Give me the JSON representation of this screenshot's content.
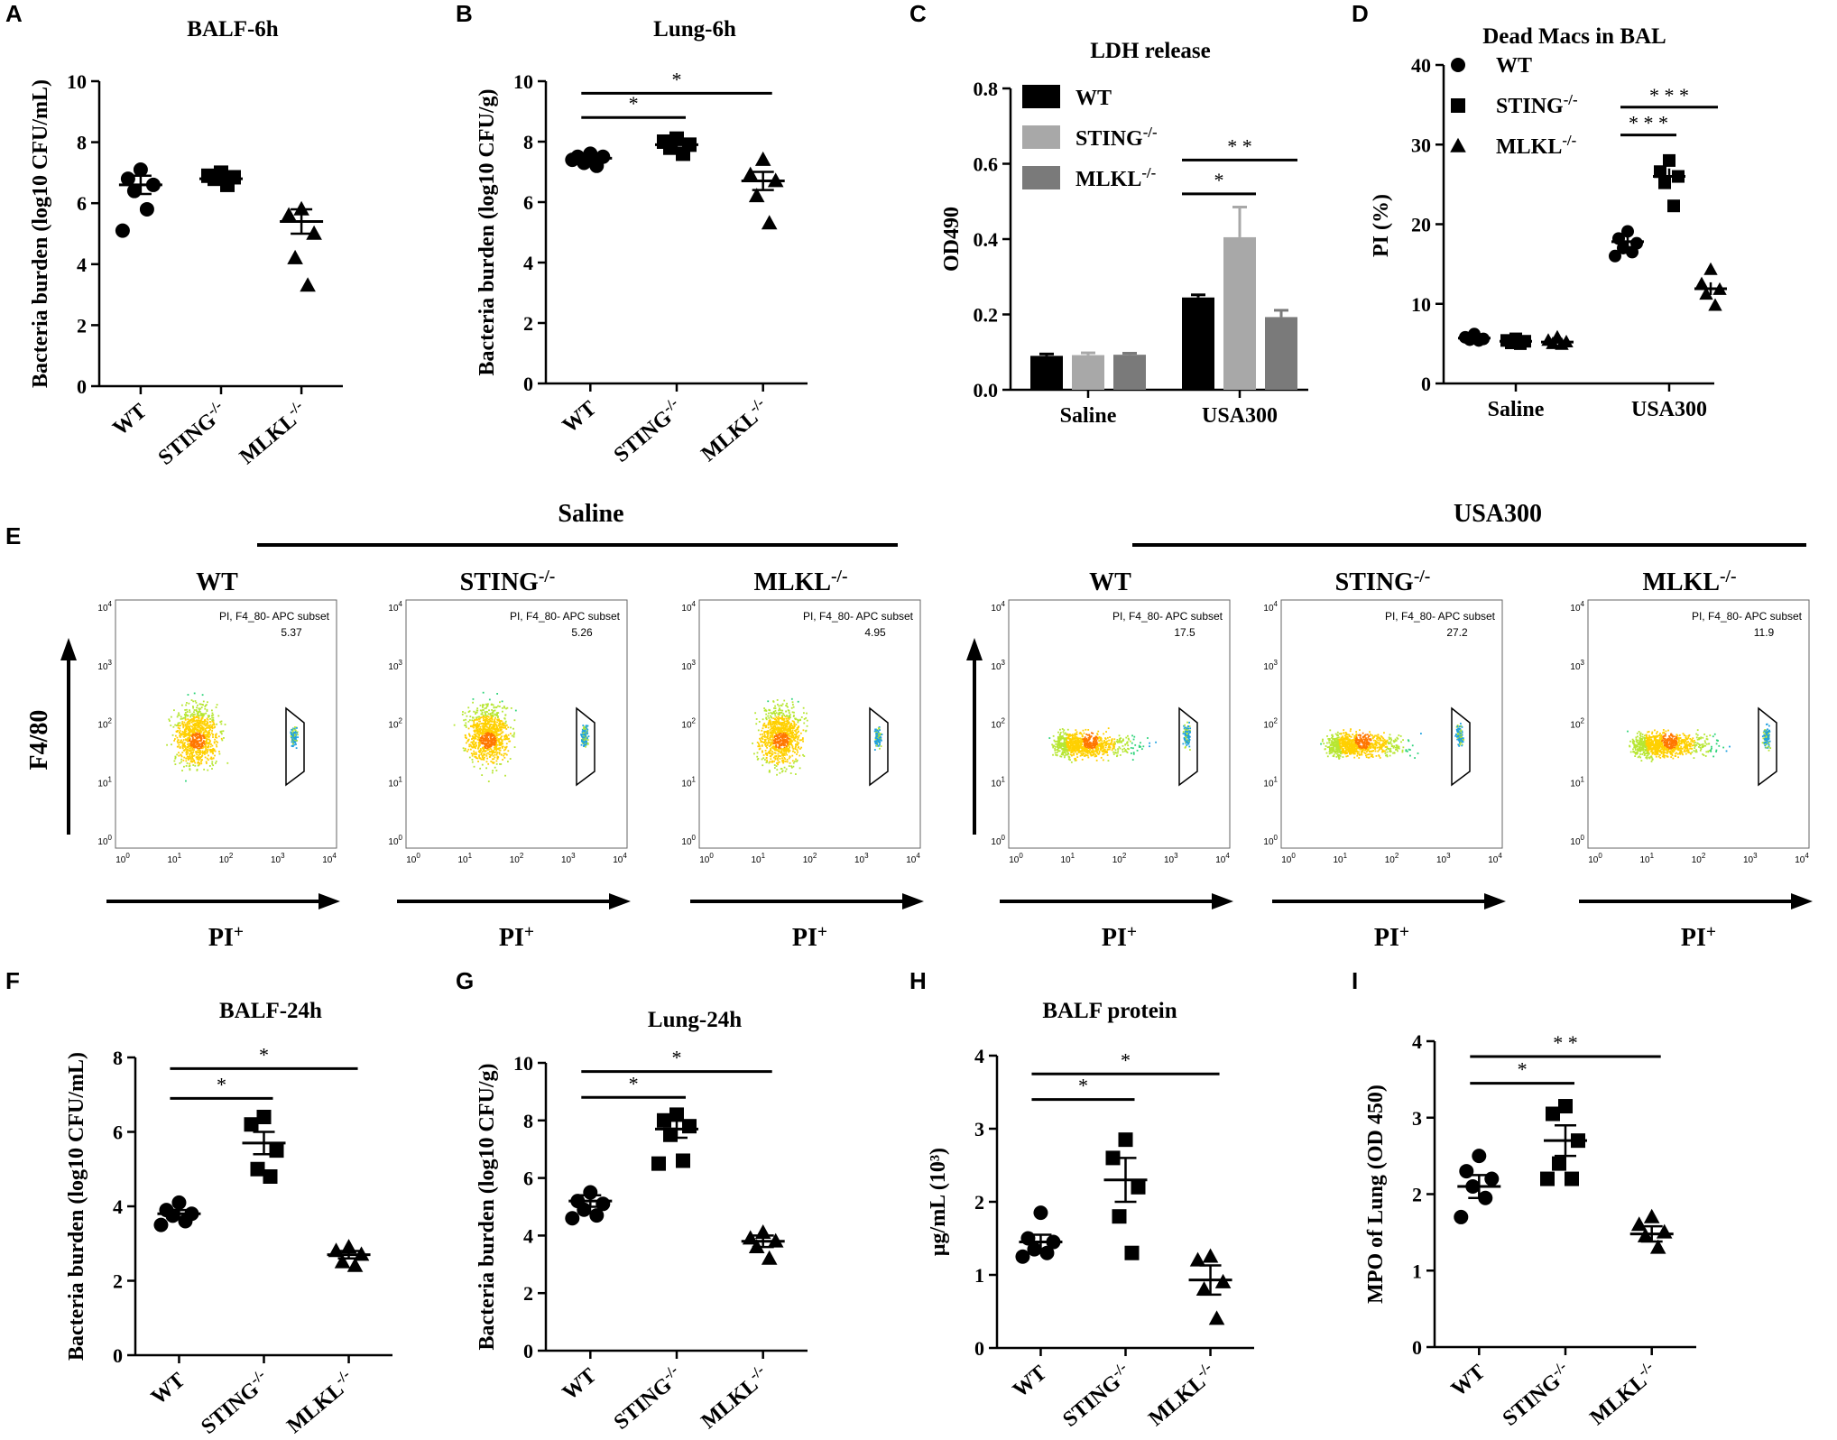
{
  "chart_data": [
    {
      "id": "A",
      "type": "scatter",
      "title": "BALF-6h",
      "ylabel": "Bacteria burden (log10 CFU/mL)",
      "ylim": [
        0,
        10
      ],
      "yticks": [
        0,
        2,
        4,
        6,
        8,
        10
      ],
      "categories": [
        "WT",
        "STING-/-",
        "MLKL-/-"
      ],
      "markers": [
        "circle",
        "square",
        "triangle"
      ],
      "points": [
        [
          7.1,
          6.8,
          6.6,
          6.4,
          5.8,
          5.1
        ],
        [
          7.0,
          6.9,
          6.85,
          6.8,
          6.6
        ],
        [
          5.8,
          5.6,
          5.0,
          4.2,
          3.3
        ]
      ],
      "means": [
        6.6,
        6.8,
        5.4
      ],
      "sems": [
        0.3,
        0.1,
        0.4
      ],
      "sig": []
    },
    {
      "id": "B",
      "type": "scatter",
      "title": "Lung-6h",
      "ylabel": "Bacteria burden (log10 CFU/g)",
      "ylim": [
        0,
        10
      ],
      "yticks": [
        0,
        2,
        4,
        6,
        8,
        10
      ],
      "categories": [
        "WT",
        "STING-/-",
        "MLKL-/-"
      ],
      "markers": [
        "circle",
        "square",
        "triangle"
      ],
      "points": [
        [
          7.6,
          7.5,
          7.5,
          7.3,
          7.2,
          7.4
        ],
        [
          8.1,
          8.0,
          7.9,
          7.8,
          7.6
        ],
        [
          7.4,
          6.9,
          6.7,
          6.2,
          5.3
        ]
      ],
      "means": [
        7.45,
        7.9,
        6.7
      ],
      "sems": [
        0.1,
        0.1,
        0.3
      ],
      "sig": [
        {
          "from": 0,
          "to": 1,
          "label": "*",
          "y": 8.8
        },
        {
          "from": 0,
          "to": 2,
          "label": "*",
          "y": 9.6
        }
      ]
    },
    {
      "id": "F",
      "type": "scatter",
      "title": "BALF-24h",
      "ylabel": "Bacteria burden (log10 CFU/mL)",
      "ylim": [
        0,
        8
      ],
      "yticks": [
        0,
        2,
        4,
        6,
        8
      ],
      "categories": [
        "WT",
        "STING-/-",
        "MLKL-/-"
      ],
      "markers": [
        "circle",
        "square",
        "triangle"
      ],
      "points": [
        [
          4.1,
          3.9,
          3.8,
          3.75,
          3.6,
          3.5
        ],
        [
          6.4,
          6.2,
          5.5,
          5.0,
          4.8
        ],
        [
          2.9,
          2.8,
          2.7,
          2.5,
          2.4
        ]
      ],
      "means": [
        3.8,
        5.7,
        2.7
      ],
      "sems": [
        0.1,
        0.3,
        0.1
      ],
      "sig": [
        {
          "from": 0,
          "to": 1,
          "label": "*",
          "y": 6.9
        },
        {
          "from": 0,
          "to": 2,
          "label": "*",
          "y": 7.7
        }
      ]
    },
    {
      "id": "G",
      "type": "scatter",
      "title": "Lung-24h",
      "ylabel": "Bacteria burden (log10 CFU/g)",
      "ylim": [
        0,
        10
      ],
      "yticks": [
        0,
        2,
        4,
        6,
        8,
        10
      ],
      "categories": [
        "WT",
        "STING-/-",
        "MLKL-/-"
      ],
      "markers": [
        "circle",
        "square",
        "triangle"
      ],
      "points": [
        [
          5.5,
          5.2,
          5.1,
          4.9,
          4.7,
          4.6
        ],
        [
          8.2,
          8.0,
          7.8,
          7.5,
          6.6,
          6.5
        ],
        [
          4.1,
          3.9,
          3.8,
          3.6,
          3.2
        ]
      ],
      "means": [
        5.2,
        7.7,
        3.8
      ],
      "sems": [
        0.2,
        0.3,
        0.2
      ],
      "sig": [
        {
          "from": 0,
          "to": 1,
          "label": "*",
          "y": 8.8
        },
        {
          "from": 0,
          "to": 2,
          "label": "*",
          "y": 9.7
        }
      ]
    },
    {
      "id": "H",
      "type": "scatter",
      "title": "BALF protein",
      "ylabel": "μg/mL (10³)",
      "ylim": [
        0,
        4
      ],
      "yticks": [
        0,
        1,
        2,
        3,
        4
      ],
      "categories": [
        "WT",
        "STING-/-",
        "MLKL-/-"
      ],
      "markers": [
        "circle",
        "square",
        "triangle"
      ],
      "points": [
        [
          1.85,
          1.5,
          1.45,
          1.35,
          1.3,
          1.25
        ],
        [
          2.85,
          2.6,
          2.2,
          1.8,
          1.3
        ],
        [
          1.25,
          1.2,
          0.9,
          0.8,
          0.4
        ]
      ],
      "means": [
        1.45,
        2.3,
        0.93
      ],
      "sems": [
        0.1,
        0.3,
        0.2
      ],
      "sig": [
        {
          "from": 0,
          "to": 1,
          "label": "*",
          "y": 3.4
        },
        {
          "from": 0,
          "to": 2,
          "label": "*",
          "y": 3.75
        }
      ]
    },
    {
      "id": "I",
      "type": "scatter",
      "title": "",
      "ylabel": "MPO of Lung (OD 450)",
      "ylim": [
        0,
        4
      ],
      "yticks": [
        0,
        1,
        2,
        3,
        4
      ],
      "categories": [
        "WT",
        "STING-/-",
        "MLKL-/-"
      ],
      "markers": [
        "circle",
        "square",
        "triangle"
      ],
      "points": [
        [
          2.5,
          2.3,
          2.2,
          2.1,
          1.95,
          1.7
        ],
        [
          3.15,
          3.05,
          2.7,
          2.4,
          2.2,
          2.2
        ],
        [
          1.7,
          1.6,
          1.5,
          1.45,
          1.3
        ]
      ],
      "means": [
        2.1,
        2.7,
        1.48
      ],
      "sems": [
        0.15,
        0.2,
        0.1
      ],
      "sig": [
        {
          "from": 0,
          "to": 1,
          "label": "*",
          "y": 3.45
        },
        {
          "from": 0,
          "to": 2,
          "label": "* *",
          "y": 3.8
        }
      ]
    },
    {
      "id": "C",
      "type": "bar",
      "title": "LDH release",
      "ylabel": "OD490",
      "ylim": [
        0,
        0.8
      ],
      "yticks": [
        "0.0",
        "0.2",
        "0.4",
        "0.6",
        "0.8"
      ],
      "categories": [
        "Saline",
        "USA300"
      ],
      "series": [
        {
          "name": "WT",
          "values": [
            0.09,
            0.245
          ],
          "errors": [
            0.005,
            0.007
          ],
          "color": "#000000"
        },
        {
          "name": "STING-/-",
          "values": [
            0.092,
            0.405
          ],
          "errors": [
            0.006,
            0.08
          ],
          "color": "#a8a8a8"
        },
        {
          "name": "MLKL-/-",
          "values": [
            0.093,
            0.193
          ],
          "errors": [
            0.004,
            0.018
          ],
          "color": "#7a7a7a"
        }
      ],
      "sig": [
        {
          "group": 1,
          "from": 0,
          "to": 1,
          "label": "*",
          "y": 0.52
        },
        {
          "group": 1,
          "from": 0,
          "to": 2,
          "label": "* *",
          "y": 0.61
        }
      ]
    },
    {
      "id": "D",
      "type": "scatter",
      "title": "Dead Macs in BAL",
      "ylabel": "PI (%)",
      "ylim": [
        0,
        40
      ],
      "yticks": [
        0,
        10,
        20,
        30,
        40
      ],
      "categories": [
        "Saline",
        "USA300"
      ],
      "series_names": [
        "WT",
        "STING-/-",
        "MLKL-/-"
      ],
      "markers": [
        "circle",
        "square",
        "triangle"
      ],
      "groups": [
        [
          [
            6.2,
            5.8,
            5.6,
            5.5,
            5.4
          ],
          [
            5.6,
            5.4,
            5.3,
            5.1,
            5.0
          ],
          [
            5.8,
            5.4,
            5.2,
            5.0,
            4.9
          ]
        ],
        [
          [
            19.1,
            18.2,
            17.6,
            17.0,
            16.5,
            16.0
          ],
          [
            28.0,
            26.6,
            26.0,
            25.2,
            22.3
          ],
          [
            14.3,
            12.5,
            11.8,
            11.2,
            9.8
          ]
        ]
      ],
      "means": [
        [
          5.7,
          5.3,
          5.2
        ],
        [
          17.8,
          26.0,
          11.9
        ]
      ],
      "sems": [
        [
          0.2,
          0.2,
          0.2
        ],
        [
          0.6,
          1.0,
          0.8
        ]
      ],
      "sig": [
        {
          "group": 1,
          "from": 0,
          "to": 1,
          "label": "* * *",
          "y": 31.2
        },
        {
          "group": 1,
          "from": 0,
          "to": 2,
          "label": "* * *",
          "y": 34.7
        }
      ]
    }
  ],
  "flow": {
    "groups": [
      {
        "label": "Saline"
      },
      {
        "label": "USA300"
      }
    ],
    "y_axis_label": "F4/80",
    "x_axis_label": "PI+",
    "gate_label": "PI, F4_80- APC subset",
    "decade_ticks": [
      "10^0",
      "10^1",
      "10^2",
      "10^3",
      "10^4"
    ],
    "plots": [
      {
        "title": "WT",
        "group": "Saline",
        "value": "5.37",
        "cluster": "round"
      },
      {
        "title": "STING-/-",
        "group": "Saline",
        "value": "5.26",
        "cluster": "round"
      },
      {
        "title": "MLKL-/-",
        "group": "Saline",
        "value": "4.95",
        "cluster": "round"
      },
      {
        "title": "WT",
        "group": "USA300",
        "value": "17.5",
        "cluster": "wide"
      },
      {
        "title": "STING-/-",
        "group": "USA300",
        "value": "27.2",
        "cluster": "wide"
      },
      {
        "title": "MLKL-/-",
        "group": "USA300",
        "value": "11.9",
        "cluster": "wide"
      }
    ]
  },
  "panel_letters": [
    "A",
    "B",
    "C",
    "D",
    "E",
    "F",
    "G",
    "H",
    "I"
  ]
}
